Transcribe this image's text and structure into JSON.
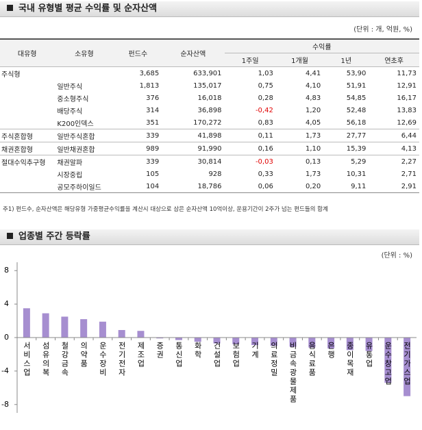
{
  "section1": {
    "title": "국내 유형별 평균 수익률 및 순자산액",
    "unit": "(단위 : 개, 억원, %)"
  },
  "table": {
    "headers": [
      "대유형",
      "소유형",
      "펀드수",
      "순자산액",
      "1주일",
      "1개월",
      "1년",
      "연초후"
    ],
    "group_header": "수익률",
    "rows": [
      {
        "major": "주식형",
        "cells": [
          "3,685",
          "633,901",
          "1,03",
          "4,41",
          "53,90",
          "11,73"
        ]
      },
      {
        "minor": "일반주식",
        "cells": [
          "1,813",
          "135,017",
          "0,75",
          "4,10",
          "51,91",
          "12,91"
        ]
      },
      {
        "minor": "중소형주식",
        "cells": [
          "376",
          "16,018",
          "0,28",
          "4,83",
          "54,85",
          "16,17"
        ]
      },
      {
        "minor": "배당주식",
        "cells": [
          "314",
          "36,898",
          "-0,42",
          "1,20",
          "52,48",
          "13,83"
        ]
      },
      {
        "minor": "K200인덱스",
        "cells": [
          "351",
          "170,272",
          "0,83",
          "4,05",
          "56,18",
          "12,69"
        ]
      },
      {
        "major": "주식혼합형",
        "minor": "일반주식혼합",
        "cells": [
          "339",
          "41,898",
          "0,11",
          "1,73",
          "27,77",
          "6,44"
        ]
      },
      {
        "major": "채권혼합형",
        "minor": "일반채권혼합",
        "cells": [
          "989",
          "91,990",
          "0,16",
          "1,10",
          "15,39",
          "4,13"
        ]
      },
      {
        "major": "절대수익추구형",
        "minor": "채권알파",
        "cells": [
          "339",
          "30,814",
          "-0,03",
          "0,13",
          "5,29",
          "2,27"
        ]
      },
      {
        "minor": "시장중립",
        "cells": [
          "105",
          "928",
          "0,33",
          "1,73",
          "10,31",
          "2,71"
        ]
      },
      {
        "minor": "공모주하이일드",
        "cells": [
          "104",
          "18,786",
          "0,06",
          "0,20",
          "9,11",
          "2,91"
        ]
      }
    ]
  },
  "footnote": "주1) 펀드수, 순자산액은 해당유형 가중평균수익률을 계산시 대상으로 삼은 순자산액 10억이상, 운용기간이 2주가 넘는 펀드들의 합계",
  "section2": {
    "title": "업종별 주간 등락률",
    "unit": "(단위 : %)"
  },
  "chart_data": {
    "type": "bar",
    "categories": [
      "서비스업",
      "섬유의복",
      "철강금속",
      "의약품",
      "운수장비",
      "전기전자",
      "제조업",
      "증권",
      "통신업",
      "화학",
      "건설업",
      "보험업",
      "기계",
      "의료정밀",
      "비금속광물제품",
      "음식료품",
      "은행",
      "종이목재",
      "유통업",
      "운수창고업",
      "전기가스업"
    ],
    "values": [
      3.5,
      2.9,
      2.5,
      2.2,
      1.9,
      0.9,
      0.8,
      -0.1,
      -0.3,
      -0.5,
      -0.7,
      -0.8,
      -0.9,
      -1.0,
      -1.1,
      -1.2,
      -1.3,
      -1.5,
      -1.6,
      -5.4,
      -7.0
    ],
    "color": "#a68ed0",
    "ylim": [
      -9,
      9
    ],
    "yticks": [
      -8,
      -4,
      0,
      4,
      8
    ]
  }
}
